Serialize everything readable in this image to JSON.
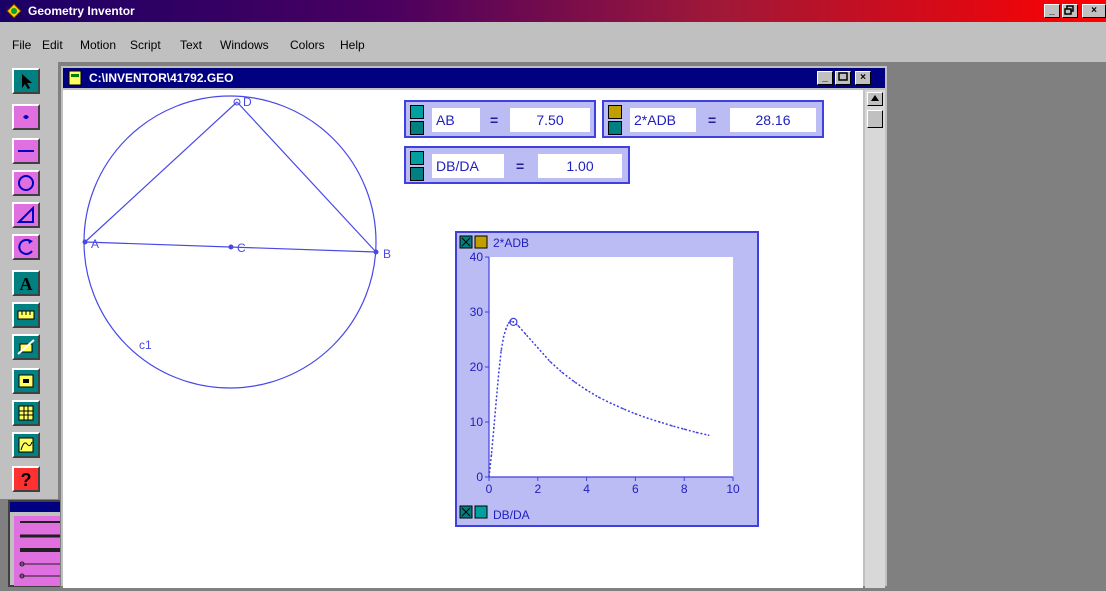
{
  "app": {
    "title": "Geometry Inventor"
  },
  "window_controls": {
    "minimize": "_",
    "restore": "8",
    "close": "×"
  },
  "menu": [
    "File",
    "Edit",
    "Motion",
    "Script",
    "Text",
    "Windows",
    "Colors",
    "Help"
  ],
  "document": {
    "title": "C:\\INVENTOR\\41792.GEO"
  },
  "geometry": {
    "points": {
      "A": "A",
      "B": "B",
      "C": "C",
      "D": "D"
    },
    "circle_label": "c1"
  },
  "measurements": [
    {
      "name": "AB",
      "equals": "=",
      "value": "7.50"
    },
    {
      "name": "2*ADB",
      "equals": "=",
      "value": "28.16"
    },
    {
      "name": "DB/DA",
      "equals": "=",
      "value": "1.00"
    }
  ],
  "chart_data": {
    "type": "line",
    "ylabel": "2*ADB",
    "xlabel": "DB/DA",
    "xlim": [
      0,
      10
    ],
    "ylim": [
      0,
      40
    ],
    "x_ticks": [
      "0",
      "2",
      "4",
      "6",
      "8",
      "10"
    ],
    "y_ticks": [
      "0",
      "10",
      "20",
      "30",
      "40"
    ],
    "x": [
      0.0,
      0.1,
      0.2,
      0.3,
      0.4,
      0.5,
      0.6,
      0.7,
      0.8,
      0.9,
      1.0,
      1.2,
      1.5,
      2.0,
      2.5,
      3.0,
      3.5,
      4.0,
      4.5,
      5.0,
      5.5,
      6.0,
      6.5,
      7.0,
      7.5,
      8.0,
      8.5,
      9.0
    ],
    "y": [
      0,
      4,
      9,
      14,
      19,
      23,
      25.5,
      27,
      28,
      28.3,
      28.2,
      27.5,
      26,
      23.5,
      21,
      19,
      17.3,
      15.8,
      14.5,
      13.4,
      12.4,
      11.5,
      10.7,
      10,
      9.3,
      8.7,
      8.1,
      7.6
    ],
    "marked_point": {
      "x": 1.0,
      "y": 28.2
    },
    "grid": false,
    "color": "#4040e0"
  },
  "colors": {
    "accent": "#4040e0",
    "panel": "#bcbcf4",
    "tool_pink": "#e070e0",
    "tool_teal": "#008080"
  },
  "tools": [
    {
      "icon": "arrow-icon"
    },
    {
      "icon": "point-icon"
    },
    {
      "icon": "line-icon"
    },
    {
      "icon": "circle-icon"
    },
    {
      "icon": "polygon-icon"
    },
    {
      "icon": "arc-icon"
    },
    {
      "icon": "text-icon"
    },
    {
      "icon": "measure-icon"
    },
    {
      "icon": "calculate-icon"
    },
    {
      "icon": "button-icon"
    },
    {
      "icon": "table-icon"
    },
    {
      "icon": "graph-icon"
    },
    {
      "icon": "help-icon"
    }
  ],
  "tool_text": {
    "text": "A",
    "help": "?"
  }
}
